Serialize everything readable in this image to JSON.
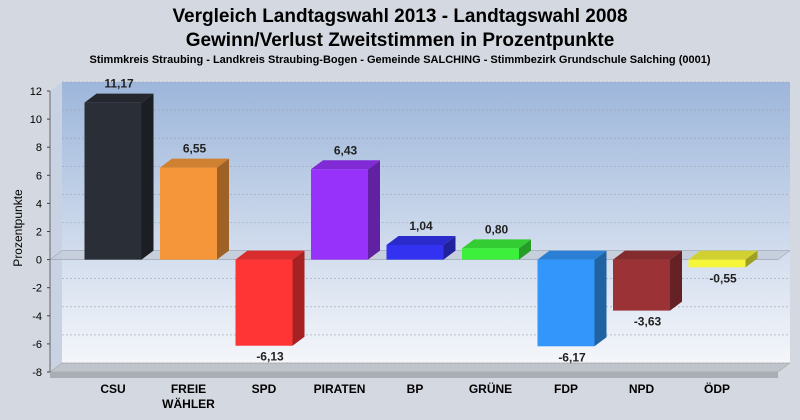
{
  "chart_data": {
    "type": "bar",
    "title": "Vergleich Landtagswahl 2013 - Landtagswahl 2008",
    "subtitle": "Gewinn/Verlust Zweitstimmen in Prozentpunkte",
    "caption": "Stimmkreis Straubing - Landkreis Straubing-Bogen - Gemeinde SALCHING - Stimmbezirk Grundschule Salching (0001)",
    "ylabel": "Prozentpunkte",
    "xlabel": "",
    "ylim": [
      -8,
      12
    ],
    "yticks": [
      12,
      10,
      8,
      6,
      4,
      2,
      0,
      -2,
      -4,
      -6,
      -8
    ],
    "grid": true,
    "categories": [
      {
        "line1": "CSU",
        "line2": ""
      },
      {
        "line1": "FREIE",
        "line2": "WÄHLER"
      },
      {
        "line1": "SPD",
        "line2": ""
      },
      {
        "line1": "PIRATEN",
        "line2": ""
      },
      {
        "line1": "BP",
        "line2": ""
      },
      {
        "line1": "GRÜNE",
        "line2": ""
      },
      {
        "line1": "FDP",
        "line2": ""
      },
      {
        "line1": "NPD",
        "line2": ""
      },
      {
        "line1": "ÖDP",
        "line2": ""
      }
    ],
    "values": [
      11.17,
      6.55,
      -6.13,
      6.43,
      1.04,
      0.8,
      -6.17,
      -3.63,
      -0.55
    ],
    "value_labels": [
      "11,17",
      "6,55",
      "-6,13",
      "6,43",
      "1,04",
      "0,80",
      "-6,17",
      "-3,63",
      "-0,55"
    ],
    "colors": [
      "#2a2e36",
      "#f5963a",
      "#ff3535",
      "#9632fa",
      "#3232f0",
      "#3cf03c",
      "#3296fa",
      "#9b3236",
      "#f5f53a"
    ]
  }
}
